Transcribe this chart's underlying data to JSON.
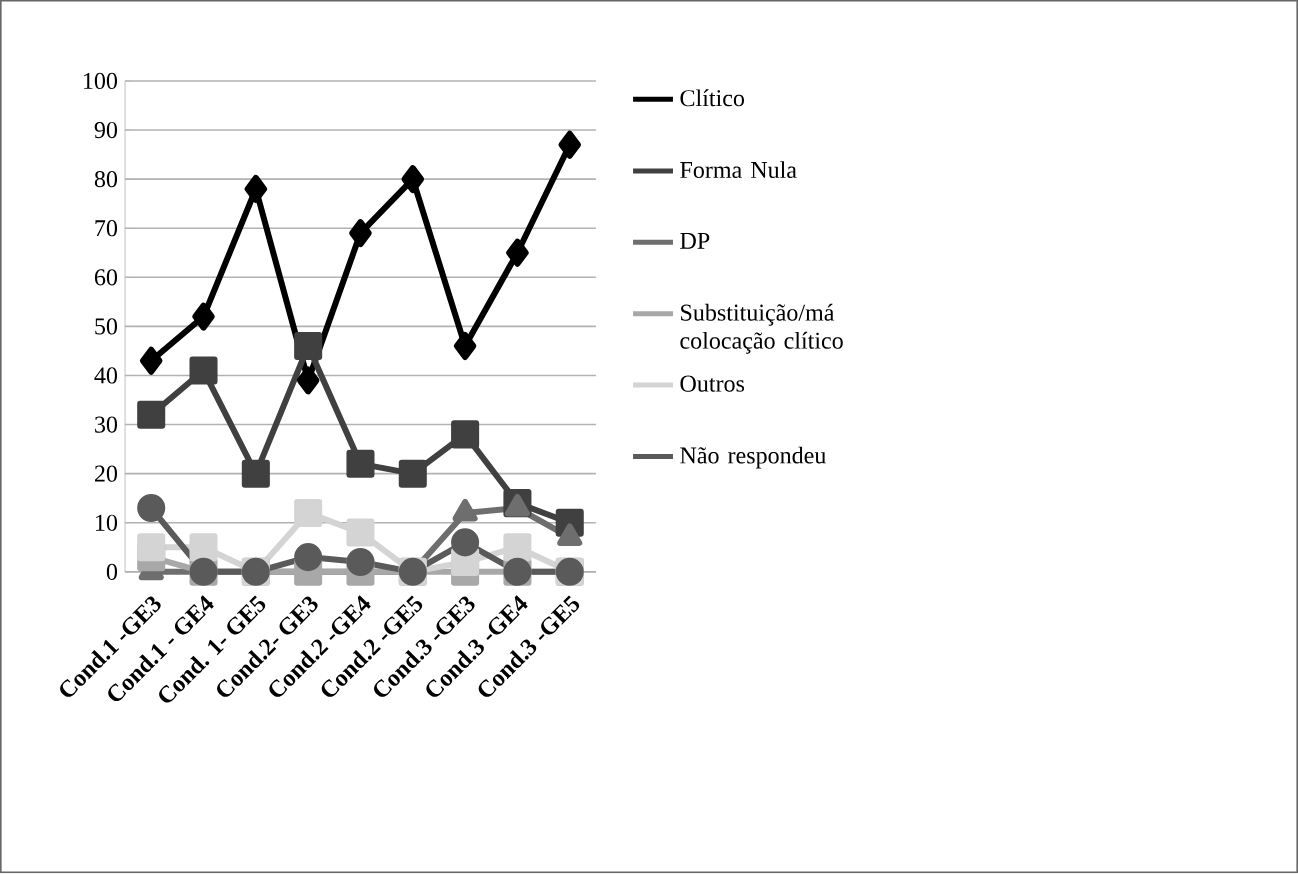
{
  "chart_data": {
    "type": "line",
    "categories": [
      "Cond.1 -GE3",
      "Cond.1 - GE4",
      "Cond. 1- GE5",
      "Cond.2- GE3",
      "Cond.2 -GE4",
      "Cond.2 -GE5",
      "Cond.3 -GE3",
      "Cond.3 -GE4",
      "Cond.3 -GE5"
    ],
    "series": [
      {
        "name": "Clítico",
        "color": "#000000",
        "marker": "diamond",
        "values": [
          43,
          52,
          78,
          39,
          69,
          80,
          46,
          65,
          87
        ]
      },
      {
        "name": "Forma Nula",
        "color": "#404040",
        "marker": "square",
        "values": [
          32,
          41,
          20,
          46,
          22,
          20,
          28,
          14,
          10
        ]
      },
      {
        "name": "DP",
        "color": "#6e6e6e",
        "marker": "triangle",
        "values": [
          0,
          0,
          0,
          0,
          0,
          0,
          12,
          13,
          7
        ]
      },
      {
        "name": "Substituição/má colocação clítico",
        "color": "#a8a8a8",
        "marker": "square",
        "values": [
          3,
          0,
          0,
          0,
          0,
          0,
          0,
          0,
          0
        ]
      },
      {
        "name": "Outros",
        "color": "#d4d4d4",
        "marker": "square",
        "values": [
          5,
          5,
          0,
          12,
          8,
          0,
          2,
          5,
          0
        ]
      },
      {
        "name": "Não respondeu",
        "color": "#5a5a5a",
        "marker": "circle",
        "values": [
          13,
          0,
          0,
          3,
          2,
          0,
          6,
          0,
          0
        ]
      }
    ],
    "ylim": [
      0,
      100
    ],
    "yticks": [
      0,
      10,
      20,
      30,
      40,
      50,
      60,
      70,
      80,
      90,
      100
    ],
    "grid": "y",
    "legend": "right"
  }
}
